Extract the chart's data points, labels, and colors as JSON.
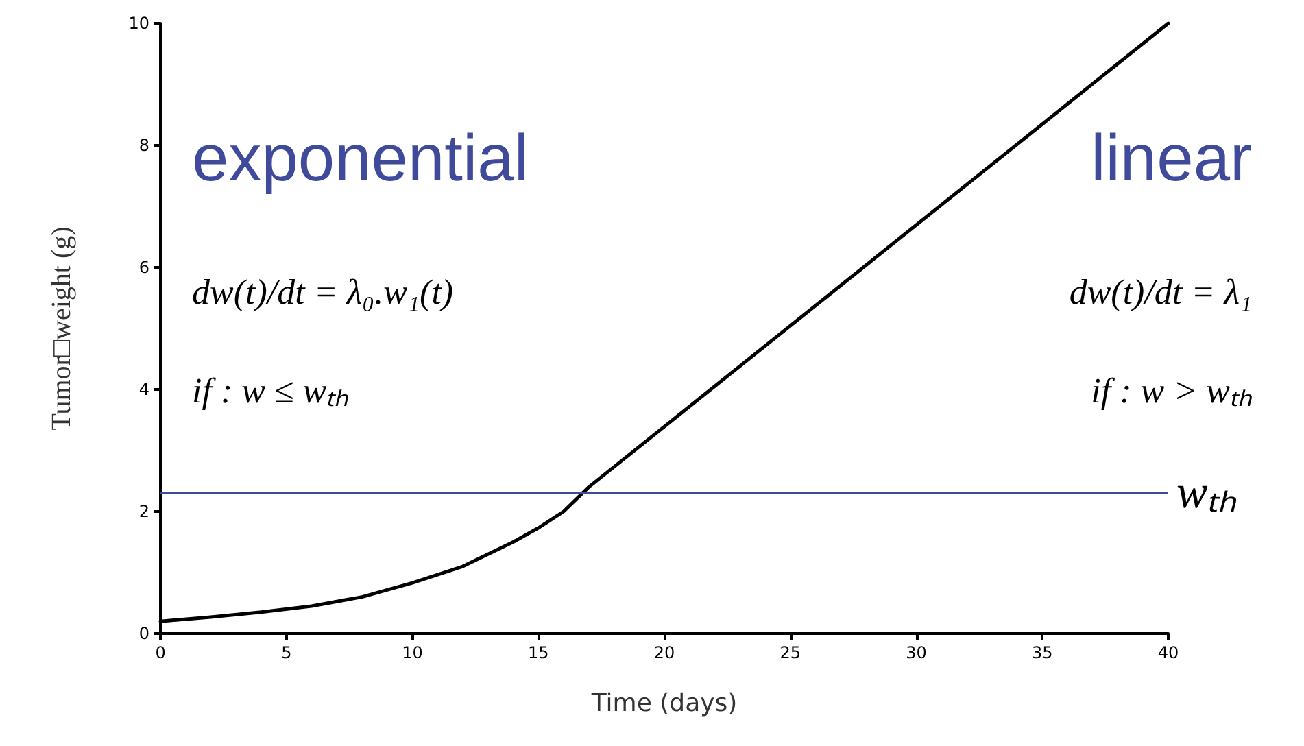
{
  "chart_data": {
    "type": "line",
    "xlabel": "Time (days)",
    "ylabel": "Tumor□weight (g)",
    "x": [
      0,
      2,
      4,
      6,
      8,
      10,
      12,
      13,
      14,
      15,
      16,
      17,
      40
    ],
    "series": [
      {
        "color": "#000000",
        "values": [
          0.2,
          0.27,
          0.35,
          0.45,
          0.6,
          0.83,
          1.1,
          1.3,
          1.5,
          1.73,
          2.0,
          2.4,
          10
        ]
      }
    ],
    "xlim": [
      0,
      40
    ],
    "xticks": [
      0,
      5,
      10,
      15,
      20,
      25,
      30,
      35,
      40
    ],
    "ylim": [
      0,
      10
    ],
    "yticks": [
      0,
      2,
      4,
      6,
      8,
      10
    ],
    "grid": false,
    "marker": "none",
    "line_style": "solid",
    "ref_lines": [
      {
        "axis": "y",
        "value": 2.3,
        "label": "wₜₕ",
        "color": "#3f4a9a",
        "line_style": "solid"
      }
    ],
    "annotations": [
      "exponential",
      "linear",
      "dw(t)/dt = λ₀.w₁(t)",
      "if : w ≤ wₜₕ",
      "dw(t)/dt = λ₁",
      "if : w > wₜₕ"
    ]
  }
}
